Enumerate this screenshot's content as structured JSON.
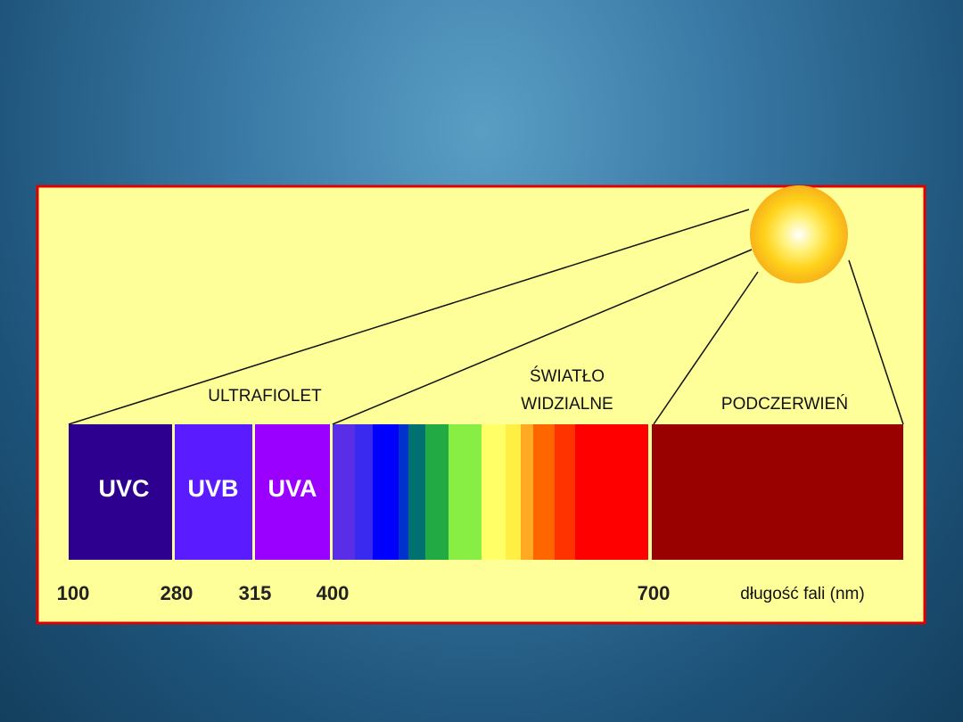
{
  "groups": [
    {
      "label_lines": [
        "ULTRAFIOLET"
      ]
    },
    {
      "label_lines": [
        "ŚWIATŁO",
        "WIDZIALNE"
      ]
    },
    {
      "label_lines": [
        "PODCZERWIEŃ"
      ]
    }
  ],
  "bands": [
    {
      "label": "UVC"
    },
    {
      "label": "UVB"
    },
    {
      "label": "UVA"
    }
  ],
  "scale": {
    "ticks": [
      "100",
      "280",
      "315",
      "400",
      "700"
    ],
    "unit_label": "długość fali (nm)"
  }
}
